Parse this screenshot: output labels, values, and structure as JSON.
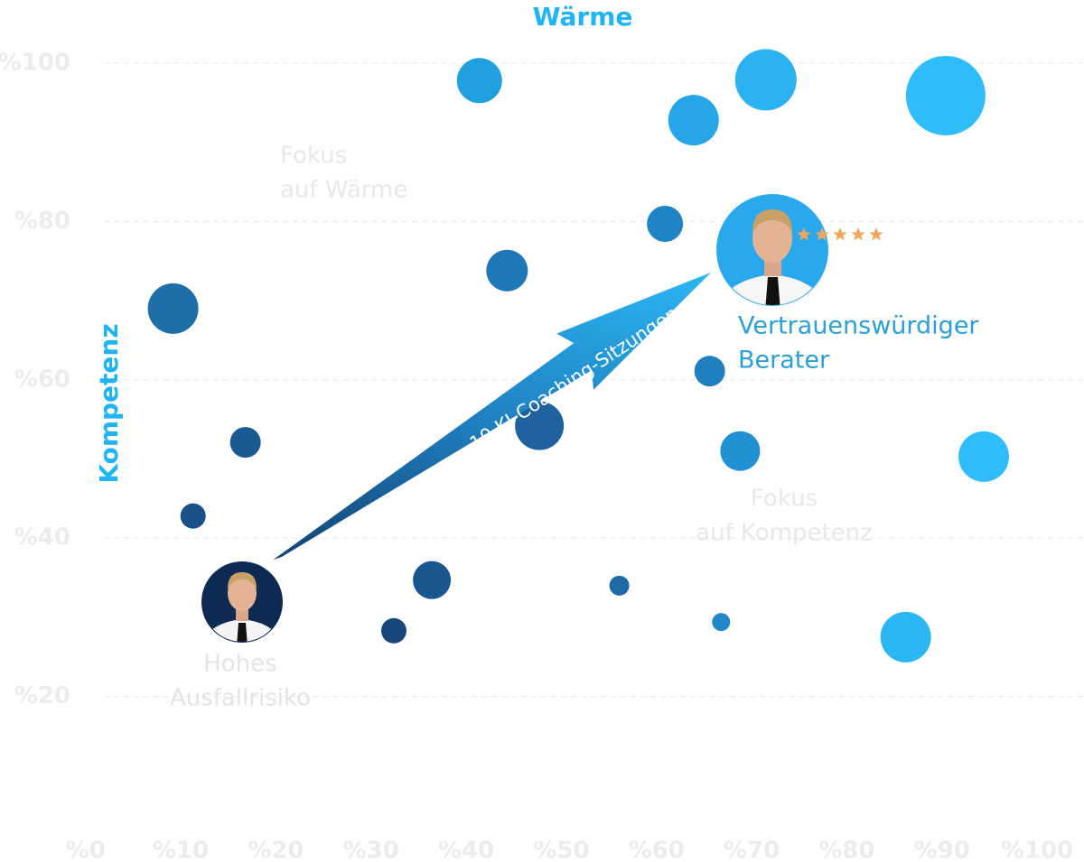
{
  "chart_data": {
    "type": "bubble",
    "title": "Wärme",
    "y_label": "Kompetenz",
    "xlim": [
      0,
      100
    ],
    "ylim": [
      0,
      100
    ],
    "xticks": [
      {
        "value": 0,
        "label": "%0"
      },
      {
        "value": 10,
        "label": "%10"
      },
      {
        "value": 20,
        "label": "%20"
      },
      {
        "value": 30,
        "label": "%30"
      },
      {
        "value": 40,
        "label": "%40"
      },
      {
        "value": 50,
        "label": "%50"
      },
      {
        "value": 60,
        "label": "%60"
      },
      {
        "value": 70,
        "label": "%70"
      },
      {
        "value": 80,
        "label": "%80"
      },
      {
        "value": 90,
        "label": "%90"
      },
      {
        "value": 100,
        "label": "%100"
      }
    ],
    "yticks": [
      {
        "value": 20,
        "label": "%20"
      },
      {
        "value": 40,
        "label": "%40"
      },
      {
        "value": 60,
        "label": "%60"
      },
      {
        "value": 80,
        "label": "%80"
      },
      {
        "value": 100,
        "label": "%100"
      }
    ],
    "grid": true,
    "series": [
      {
        "x": [
          9.2,
          16.8,
          11.3,
          32.4,
          36.4,
          41.4,
          44.3,
          47.7,
          56.1,
          60.9,
          63.9,
          65.6,
          66.8,
          68.8,
          71.5,
          90.4,
          94.4,
          86.2
        ],
        "values": [
          69.0,
          52.1,
          42.8,
          28.3,
          34.7,
          97.8,
          73.8,
          54.2,
          34.0,
          79.7,
          92.8,
          61.1,
          29.4,
          51.0,
          97.9,
          95.9,
          50.3,
          27.5
        ],
        "sizes": [
          28,
          17,
          14,
          14,
          21,
          25,
          23,
          27,
          11,
          20,
          28,
          17,
          10,
          22,
          34,
          44,
          28,
          28
        ],
        "colors": [
          "#1e6fa8",
          "#1a5a92",
          "#1a5088",
          "#17467a",
          "#1a568f",
          "#21a0e0",
          "#1e78b8",
          "#1e62a0",
          "#1d6aa8",
          "#1f84c6",
          "#26a6e8",
          "#1f80c0",
          "#2088c8",
          "#2291d3",
          "#2bb2f0",
          "#2ebcfb",
          "#2ebcfb",
          "#2bb6f4"
        ]
      }
    ],
    "annotations": [
      {
        "lines": [
          "Fokus",
          "auf Wärme"
        ]
      },
      {
        "lines": [
          "Fokus",
          "auf Kompetenz"
        ]
      },
      {
        "lines": [
          "Hohes",
          "Ausfallrisiko"
        ]
      },
      {
        "lines": [
          "Vertrauenswürdiger",
          "Berater"
        ]
      }
    ],
    "arrow_label": "10 KI-Coaching-Sitzungen"
  }
}
